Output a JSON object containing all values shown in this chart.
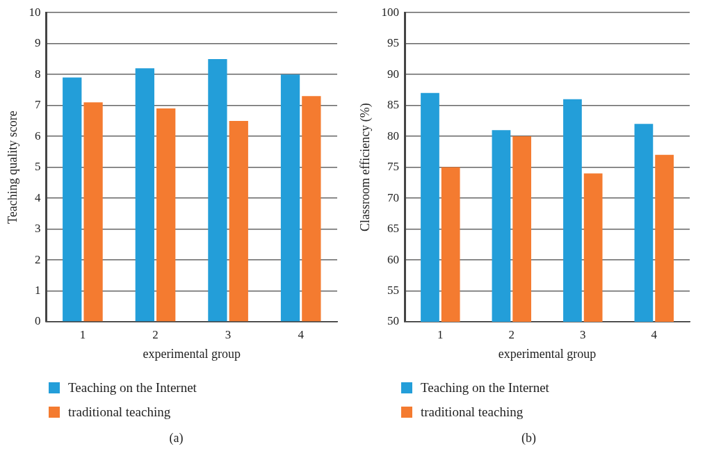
{
  "chart_data": [
    {
      "type": "bar",
      "xlabel": "experimental group",
      "ylabel": "Teaching quality score",
      "categories": [
        "1",
        "2",
        "3",
        "4"
      ],
      "series": [
        {
          "name": "Teaching on the Internet",
          "color": "#239ed9",
          "values": [
            7.9,
            8.2,
            8.5,
            8.0
          ]
        },
        {
          "name": "traditional teaching",
          "color": "#f47b30",
          "values": [
            7.1,
            6.9,
            6.5,
            7.3
          ]
        }
      ],
      "ylim": [
        0,
        10
      ],
      "yticks": [
        0,
        1,
        2,
        3,
        4,
        5,
        6,
        7,
        8,
        9,
        10
      ],
      "grid": "y",
      "legend": "bottom left",
      "annotations": [
        "(a)"
      ]
    },
    {
      "type": "bar",
      "xlabel": "experimental group",
      "ylabel": "Classroom efficiency (%)",
      "categories": [
        "1",
        "2",
        "3",
        "4"
      ],
      "series": [
        {
          "name": "Teaching on the Internet",
          "color": "#239ed9",
          "values": [
            87,
            81,
            86,
            82
          ]
        },
        {
          "name": "traditional teaching",
          "color": "#f47b30",
          "values": [
            75,
            80,
            74,
            77
          ]
        }
      ],
      "ylim": [
        50,
        100
      ],
      "yticks": [
        50,
        55,
        60,
        65,
        70,
        75,
        80,
        85,
        90,
        95,
        100
      ],
      "grid": "y",
      "legend": "bottom left",
      "annotations": [
        "(b)"
      ]
    }
  ]
}
